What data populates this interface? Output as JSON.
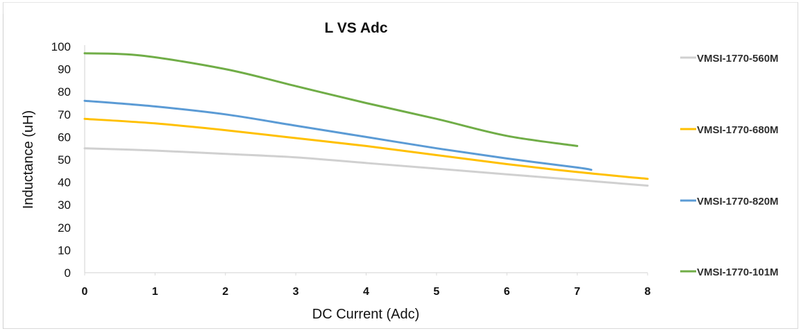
{
  "chart_data": {
    "type": "line",
    "title": "L VS Adc",
    "xlabel": "DC Current (Adc)",
    "ylabel": "Inductance (uH)",
    "xlim": [
      0,
      8
    ],
    "ylim": [
      0,
      100
    ],
    "xticks": [
      "0",
      "1",
      "2",
      "3",
      "4",
      "5",
      "6",
      "7",
      "8"
    ],
    "yticks": [
      "0",
      "10",
      "20",
      "30",
      "40",
      "50",
      "60",
      "70",
      "80",
      "90",
      "100"
    ],
    "grid": false,
    "legend_position": "right",
    "series": [
      {
        "name": "VMSI-1770-560M",
        "color": "#d0d0d0",
        "x": [
          0,
          1,
          2,
          3,
          4,
          5,
          6,
          7,
          8
        ],
        "y": [
          55,
          54,
          52.5,
          51,
          48.5,
          46,
          43.5,
          41,
          38.5
        ]
      },
      {
        "name": "VMSI-1770-680M",
        "color": "#ffc000",
        "x": [
          0,
          1,
          2,
          3,
          4,
          5,
          6,
          7,
          8
        ],
        "y": [
          68,
          66,
          63,
          59.5,
          56,
          52,
          48,
          44.5,
          41.5
        ]
      },
      {
        "name": "VMSI-1770-820M",
        "color": "#5b9bd5",
        "x": [
          0,
          1,
          2,
          3,
          4,
          5,
          6,
          7,
          7.2
        ],
        "y": [
          76,
          73.5,
          70,
          65,
          60,
          55,
          50.5,
          46.5,
          45.5
        ]
      },
      {
        "name": "VMSI-1770-101M",
        "color": "#70ad47",
        "x": [
          0,
          0.8,
          2,
          3,
          4,
          5,
          6,
          7
        ],
        "y": [
          97,
          96,
          90,
          82.5,
          75,
          68,
          60.5,
          56
        ]
      }
    ]
  }
}
